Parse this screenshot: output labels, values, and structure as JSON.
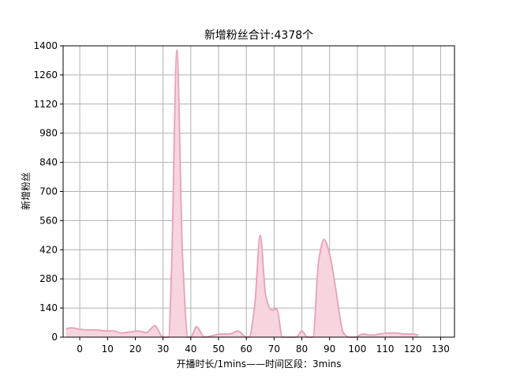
{
  "chart_data": {
    "type": "area",
    "title": "新增粉丝合计:4378个",
    "xlabel": "开播时长/1mins——时间区段：3mins",
    "ylabel": "新增粉丝",
    "xlim": [
      -6,
      135
    ],
    "ylim": [
      0,
      1400
    ],
    "xticks": [
      0,
      10,
      20,
      30,
      40,
      50,
      60,
      70,
      80,
      90,
      100,
      110,
      120,
      130
    ],
    "yticks": [
      0,
      140,
      280,
      420,
      560,
      700,
      840,
      980,
      1120,
      1260,
      1400
    ],
    "grid": true,
    "colors": {
      "line": "#e8a0b6",
      "fill": "#f6d5df"
    },
    "series": [
      {
        "x": [
          -5,
          -3,
          0,
          3,
          6,
          9,
          12,
          15,
          18,
          21,
          24,
          27,
          30,
          32,
          33,
          35,
          37,
          39,
          40,
          42,
          45,
          48,
          51,
          54,
          57,
          60,
          61,
          63,
          65,
          67,
          69,
          71,
          73,
          75,
          78,
          80,
          82,
          84,
          86,
          88,
          90,
          92,
          95,
          97,
          99,
          102,
          105,
          108,
          111,
          114,
          117,
          120,
          122
        ],
        "y": [
          40,
          45,
          38,
          35,
          35,
          30,
          30,
          20,
          25,
          30,
          22,
          55,
          0,
          0,
          300,
          1380,
          400,
          0,
          0,
          50,
          0,
          8,
          15,
          15,
          30,
          0,
          0,
          150,
          490,
          200,
          130,
          135,
          0,
          0,
          0,
          30,
          0,
          0,
          360,
          470,
          400,
          250,
          20,
          0,
          0,
          15,
          10,
          15,
          20,
          20,
          15,
          15,
          10
        ]
      }
    ]
  }
}
